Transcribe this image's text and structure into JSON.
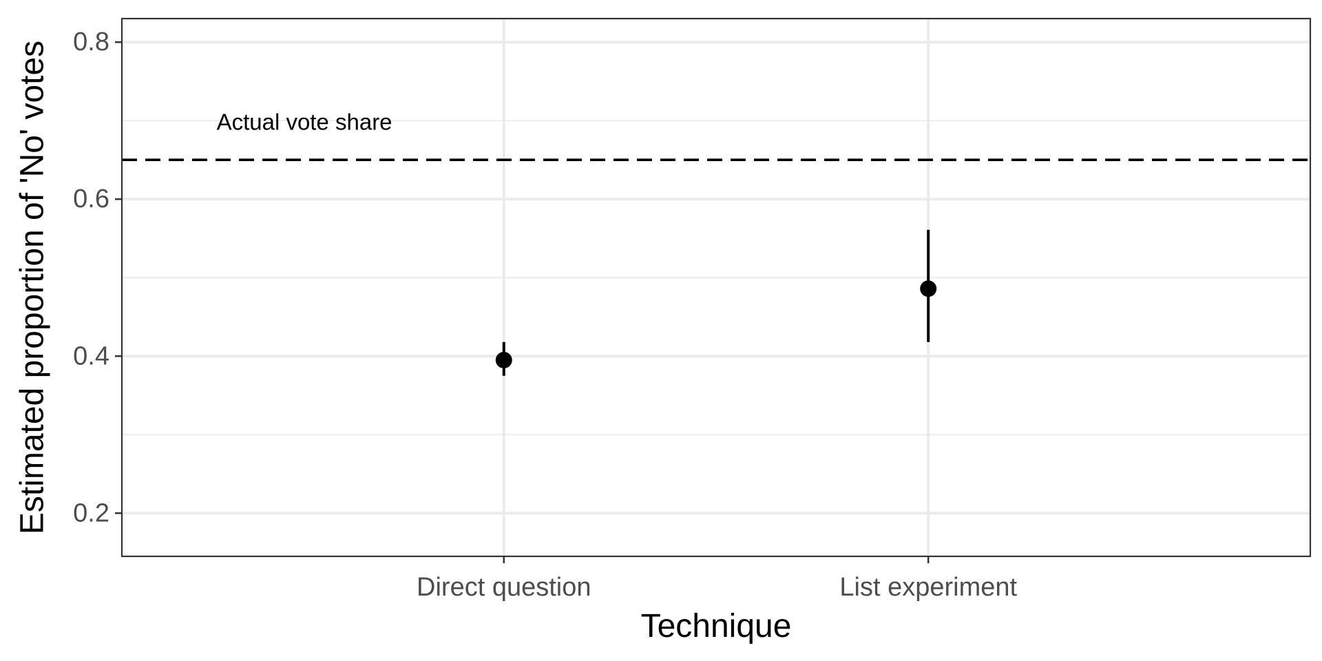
{
  "chart_data": {
    "type": "scatter",
    "xlabel": "Technique",
    "ylabel": "Estimated proportion of 'No' votes",
    "categories": [
      "Direct question",
      "List experiment"
    ],
    "points": [
      {
        "category": "Direct question",
        "estimate": 0.395,
        "lower": 0.375,
        "upper": 0.418
      },
      {
        "category": "List experiment",
        "estimate": 0.486,
        "lower": 0.418,
        "upper": 0.561
      }
    ],
    "ylim": [
      0.145,
      0.83
    ],
    "yticks": [
      0.2,
      0.4,
      0.6,
      0.8
    ],
    "ytick_labels": [
      "0.2",
      "0.4",
      "0.6",
      "0.8"
    ],
    "reference_line": {
      "value": 0.65,
      "style": "dashed",
      "label": "Actual vote share",
      "label_value": 0.696
    },
    "grid": true,
    "legend": "none",
    "colors": {
      "points": "#000000",
      "grid": "#ebebeb",
      "panel_border": "#333333"
    }
  }
}
